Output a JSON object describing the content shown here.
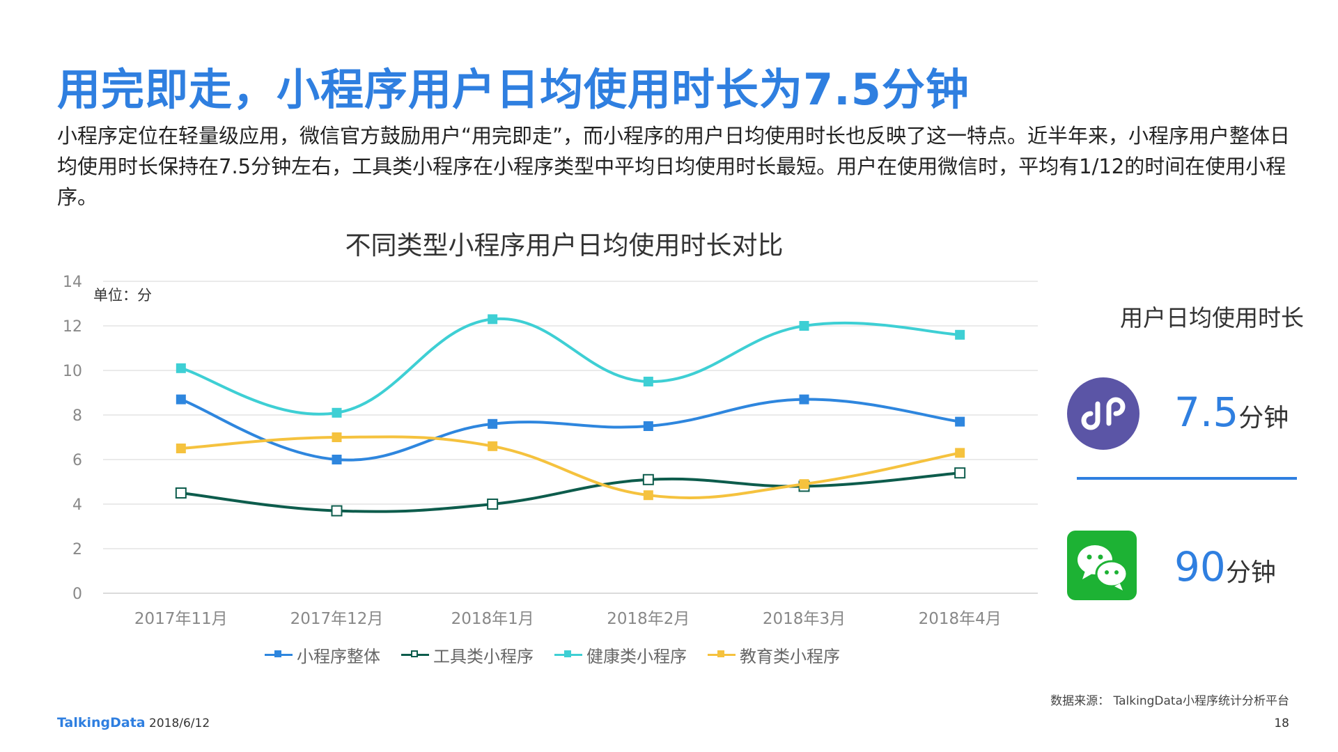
{
  "title": "用完即走，小程序用户日均使用时长为7.5分钟",
  "description": "小程序定位在轻量级应用，微信官方鼓励用户“用完即走”，而小程序的用户日均使用时长也反映了这一特点。近半年来，小程序用户整体日均使用时长保持在7.5分钟左右，工具类小程序在小程序类型中平均日均使用时长最短。用户在使用微信时，平均有1/12的时间在使用小程序。",
  "chart_data": {
    "type": "line",
    "title": "不同类型小程序用户日均使用时长对比",
    "unit_label": "单位：分",
    "categories": [
      "2017年11月",
      "2017年12月",
      "2018年1月",
      "2018年2月",
      "2018年3月",
      "2018年4月"
    ],
    "ylim": [
      0,
      14
    ],
    "yticks": [
      0,
      2,
      4,
      6,
      8,
      10,
      12,
      14
    ],
    "grid": true,
    "legend_position": "bottom",
    "series": [
      {
        "name": "小程序整体",
        "values": [
          8.7,
          6.0,
          7.6,
          7.5,
          8.7,
          7.7
        ],
        "color": "#2e86de",
        "marker": "filled-square"
      },
      {
        "name": "工具类小程序",
        "values": [
          4.5,
          3.7,
          4.0,
          5.1,
          4.8,
          5.4
        ],
        "color": "#0d5c4c",
        "marker": "hollow-square"
      },
      {
        "name": "健康类小程序",
        "values": [
          10.1,
          8.1,
          12.3,
          9.5,
          12.0,
          11.6
        ],
        "color": "#3ecfd4",
        "marker": "filled-square"
      },
      {
        "name": "教育类小程序",
        "values": [
          6.5,
          7.0,
          6.6,
          4.4,
          4.9,
          6.3
        ],
        "color": "#f5c23e",
        "marker": "filled-square"
      }
    ]
  },
  "panel": {
    "heading": "用户日均使用时长",
    "miniprogram": {
      "icon": "mini-program-icon",
      "value": "7.5",
      "unit": "分钟"
    },
    "wechat": {
      "icon": "wechat-icon",
      "value": "90",
      "unit": "分钟"
    }
  },
  "source": "数据来源： TalkingData小程序统计分析平台",
  "footer": {
    "brand": "TalkingData",
    "date": "2018/6/12",
    "page": "18"
  }
}
